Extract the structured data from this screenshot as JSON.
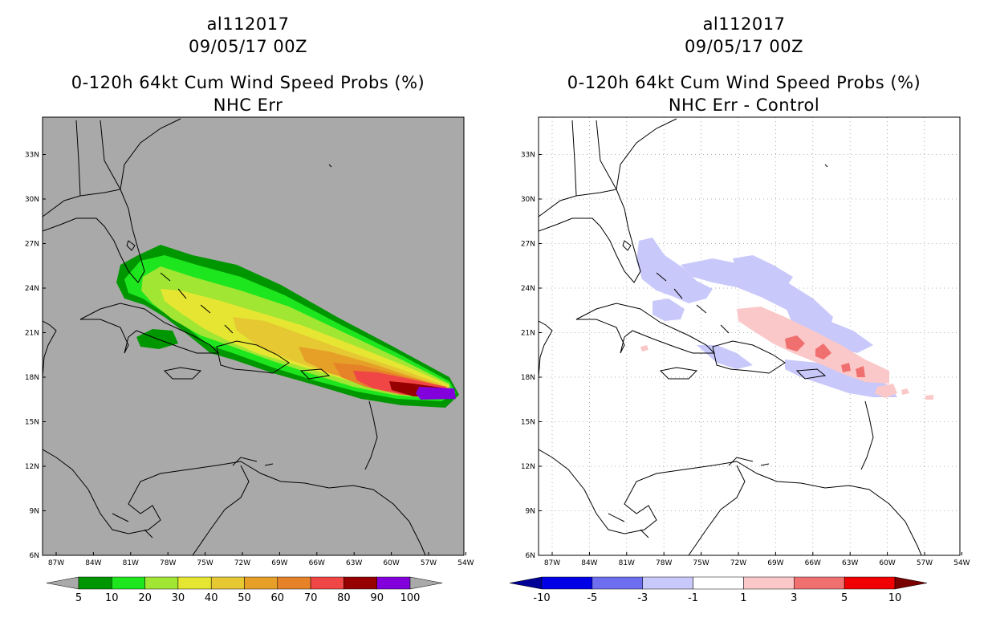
{
  "panels": [
    {
      "storm_id": "al112017",
      "datetime": "09/05/17 00Z",
      "product": "0-120h 64kt Cum Wind Speed Probs (%)",
      "subtitle": "NHC Err",
      "background": "#a9a9a9",
      "lat_ticks": [
        "33N",
        "30N",
        "27N",
        "24N",
        "21N",
        "18N",
        "15N",
        "12N",
        "9N",
        "6N"
      ],
      "lon_ticks": [
        "87W",
        "84W",
        "81W",
        "78W",
        "75W",
        "72W",
        "69W",
        "66W",
        "63W",
        "60W",
        "57W",
        "54W"
      ],
      "colorbar": {
        "labels": [
          "5",
          "10",
          "20",
          "30",
          "40",
          "50",
          "60",
          "70",
          "80",
          "90",
          "100"
        ],
        "colors": [
          "#009600",
          "#1ee61e",
          "#a0e632",
          "#e6e632",
          "#e6c832",
          "#e6a028",
          "#e68228",
          "#f04646",
          "#960000",
          "#8200dc"
        ],
        "under_color": "#a9a9a9",
        "over_color": "#a9a9a9"
      }
    },
    {
      "storm_id": "al112017",
      "datetime": "09/05/17 00Z",
      "product": "0-120h 64kt Cum Wind Speed Probs (%)",
      "subtitle": "NHC Err - Control",
      "background": "#ffffff",
      "lat_ticks": [
        "33N",
        "30N",
        "27N",
        "24N",
        "21N",
        "18N",
        "15N",
        "12N",
        "9N",
        "6N"
      ],
      "lon_ticks": [
        "87W",
        "84W",
        "81W",
        "78W",
        "75W",
        "72W",
        "69W",
        "66W",
        "63W",
        "60W",
        "57W",
        "54W"
      ],
      "colorbar": {
        "labels": [
          "-10",
          "-5",
          "-3",
          "-1",
          "1",
          "3",
          "5",
          "10"
        ],
        "colors": [
          "#0000e6",
          "#6e6ef0",
          "#c8c8fa",
          "#ffffff",
          "#fac8c8",
          "#f07070",
          "#f00000"
        ],
        "under_color": "#000096",
        "over_color": "#780000"
      }
    }
  ]
}
